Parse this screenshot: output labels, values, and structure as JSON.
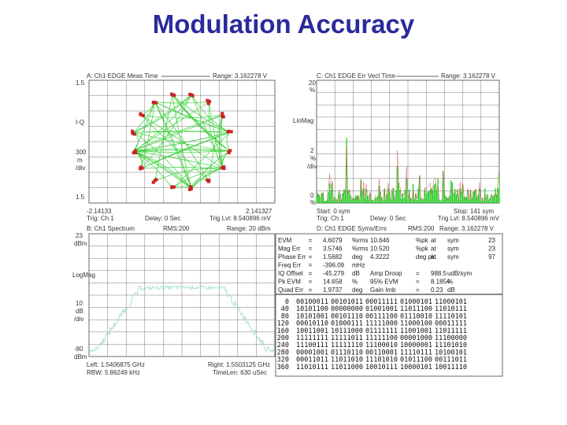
{
  "slide_title": "Modulation Accuracy",
  "colors": {
    "title": "#2a2a9c",
    "trace": "#22cc22",
    "marker": "#cc2222",
    "grid": "#555555"
  },
  "panel_a": {
    "header": "A: Ch1 EDGE Meas Time",
    "range": "Range: 3.162278  V",
    "y_top": "1.5",
    "y_iq": "I-Q",
    "y_div": [
      "300",
      "m",
      "/div"
    ],
    "y_bot": "1.5",
    "x_left": "-2.14133",
    "x_right": "2.141327",
    "footer_left": "Trig: Ch 1",
    "footer_mid": "Delay: 0  Sec",
    "footer_right": "Trig Lvl: 8.540896 mV"
  },
  "panel_c": {
    "header": "C: Ch1 EDGE Err Vect Time",
    "range": "Range: 3.162278  V",
    "y_top": [
      "20",
      "%"
    ],
    "y_mag": "LinMag",
    "y_div": [
      "2",
      "%",
      "/div"
    ],
    "y_bot": [
      "0",
      "%"
    ],
    "start": "Start: 0  sym",
    "stop": "Stop: 141  sym",
    "footer_left": "Trig: Ch 1",
    "footer_mid": "Delay: 0  Sec",
    "footer_right": "Trig Lvl: 8.540896 mV"
  },
  "panel_b": {
    "header": "B: Ch1 Spectrum",
    "rms": "RMS:200",
    "range": "Range: 20 dBm",
    "y_top": [
      "23",
      "dBm"
    ],
    "y_mag": "LogMag",
    "y_div": [
      "10",
      "dB",
      "/div"
    ],
    "y_bot": [
      "-80",
      "dBm"
    ],
    "left": "Left: 1.5406875 GHz",
    "rbw": "RBW: 5.86249 kHz",
    "right": "Right: 1.5503125 GHz",
    "timelen": "TimeLen: 630  uSec"
  },
  "panel_d": {
    "header": "D: Ch1 EDGE Syms/Errs",
    "rms": "RMS:200",
    "range": "Range: 3.162278  V",
    "metrics": [
      [
        "EVM",
        "=",
        "4.6079",
        "%rms",
        "10.646",
        "%pk",
        "at",
        "sym",
        "23"
      ],
      [
        "Mag Err",
        "=",
        "3.5746",
        "%rms",
        "10.520",
        "%pk",
        "at",
        "sym",
        "23"
      ],
      [
        "Phase Err",
        "=",
        "1.5682",
        "deg",
        "4.3222",
        "deg pk",
        "at",
        "sym",
        "97"
      ],
      [
        "Freq Err",
        "=",
        "-396.09",
        "mHz",
        "",
        "",
        "",
        "",
        ""
      ],
      [
        "IQ Offset",
        "=",
        "-45.279",
        "dB",
        "Amp Droop",
        "=",
        "988.5",
        "udB/sym",
        ""
      ],
      [
        "Pk EVM",
        "=",
        "14.658",
        "%",
        "95% EVM",
        "=",
        "8.1854",
        "%",
        ""
      ],
      [
        "Quad Err",
        "=",
        "1.9737",
        "deg",
        "Gain Imb",
        "=",
        "0.23",
        "dB",
        ""
      ]
    ],
    "symbols": [
      [
        "0",
        "00100011",
        "00101011",
        "00011111",
        "01000101",
        "11000101"
      ],
      [
        "40",
        "10101100",
        "00000000",
        "01001001",
        "11011100",
        "11010111"
      ],
      [
        "80",
        "10101001",
        "00101110",
        "00111100",
        "01110010",
        "11110101"
      ],
      [
        "120",
        "00010110",
        "01000111",
        "11111000",
        "11000100",
        "00011111"
      ],
      [
        "160",
        "10011001",
        "10111000",
        "01111111",
        "11001001",
        "11011111"
      ],
      [
        "200",
        "11111111",
        "11111011",
        "11111100",
        "00001000",
        "11100000"
      ],
      [
        "240",
        "11100111",
        "11111110",
        "11100010",
        "10000001",
        "11101010"
      ],
      [
        "280",
        "00001001",
        "01110110",
        "00110001",
        "11110111",
        "10100101"
      ],
      [
        "320",
        "00011011",
        "11011010",
        "11101010",
        "01011100",
        "00111011"
      ],
      [
        "360",
        "11010111",
        "11011000",
        "10010111",
        "10000101",
        "10011110"
      ]
    ]
  }
}
